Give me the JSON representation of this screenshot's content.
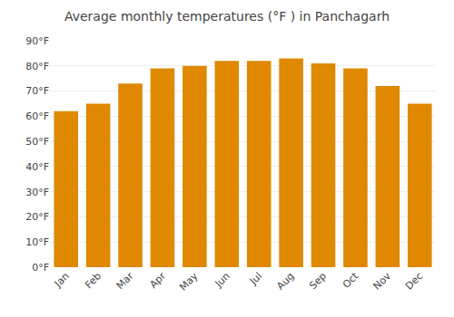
{
  "chart_data": {
    "type": "bar",
    "title": "Average monthly temperatures (°F ) in Panchagarh",
    "categories": [
      "Jan",
      "Feb",
      "Mar",
      "Apr",
      "May",
      "Jun",
      "Jul",
      "Aug",
      "Sep",
      "Oct",
      "Nov",
      "Dec"
    ],
    "values": [
      62,
      65,
      73,
      79,
      80,
      82,
      82,
      83,
      81,
      79,
      72,
      65
    ],
    "color": "#E08800",
    "ylim": [
      0,
      90
    ],
    "yticks": [
      {
        "value": 0,
        "label": "0°F"
      },
      {
        "value": 10,
        "label": "10°F"
      },
      {
        "value": 20,
        "label": "20°F"
      },
      {
        "value": 30,
        "label": "30°F"
      },
      {
        "value": 40,
        "label": "40°F"
      },
      {
        "value": 50,
        "label": "50°F"
      },
      {
        "value": 60,
        "label": "60°F"
      },
      {
        "value": 70,
        "label": "70°F"
      },
      {
        "value": 80,
        "label": "80°F"
      },
      {
        "value": 90,
        "label": "90°F"
      }
    ],
    "grid": true
  }
}
